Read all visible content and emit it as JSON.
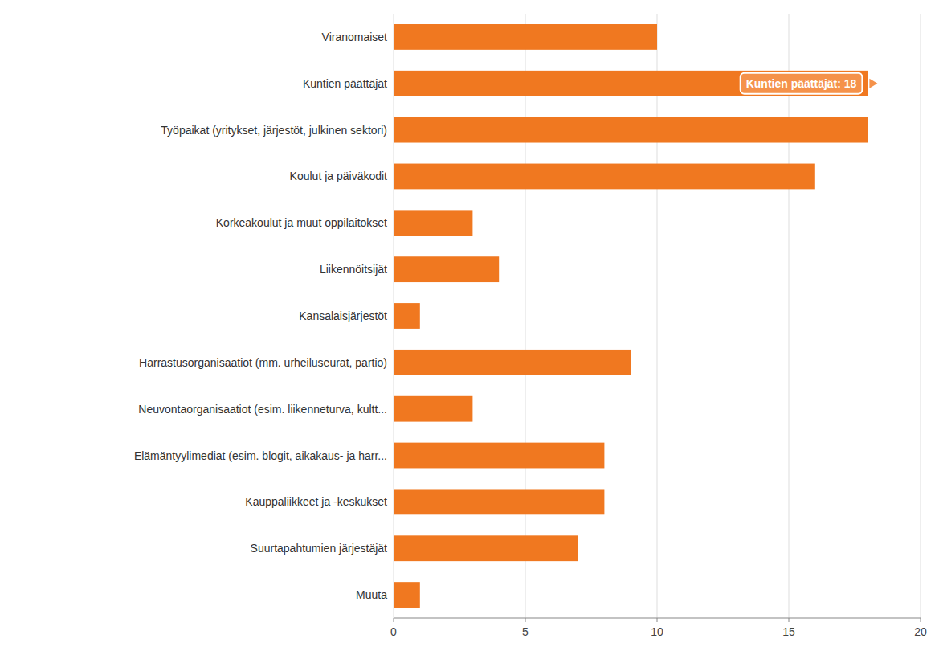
{
  "chart_data": {
    "type": "bar",
    "orientation": "horizontal",
    "categories": [
      "Viranomaiset",
      "Kuntien päättäjät",
      "Työpaikat (yritykset, järjestöt, julkinen sektori)",
      "Koulut ja päiväkodit",
      "Korkeakoulut ja muut oppilaitokset",
      "Liikennöitsijät",
      "Kansalaisjärjestöt",
      "Harrastusorganisaatiot (mm. urheiluseurat, partio)",
      "Neuvontaorganisaatiot (esim. liikenneturva, kultt...",
      "Elämäntyylimediat (esim. blogit, aikakaus- ja harr...",
      "Kauppaliikkeet ja -keskukset",
      "Suurtapahtumien järjestäjät",
      "Muuta"
    ],
    "values": [
      10,
      18,
      18,
      16,
      3,
      4,
      1,
      9,
      3,
      8,
      8,
      7,
      1
    ],
    "color": "#F07820",
    "xlim": [
      0,
      20
    ],
    "xticks": [
      0,
      5,
      10,
      15,
      20
    ],
    "grid": true,
    "annotations": [
      {
        "text": "Kuntien päättäjät: 18",
        "x": 18,
        "category": "Kuntien päättäjät"
      }
    ]
  }
}
